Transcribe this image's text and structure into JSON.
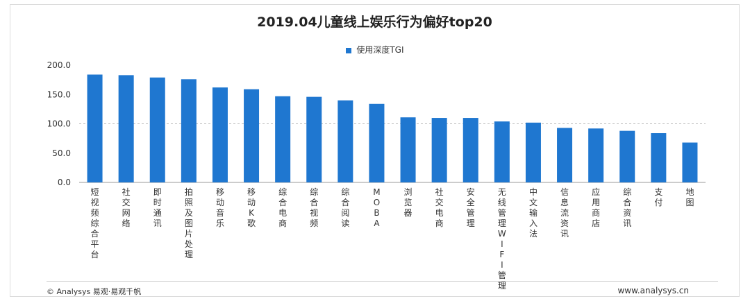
{
  "title": "2019.04儿童线上娱乐行为偏好top20",
  "footer": {
    "left": "© Analysys 易观·易观千帆",
    "right": "www.analysys.cn"
  },
  "colors": {
    "bar": "#1f77d0",
    "grid": "#b8b8b8",
    "axis": "#999999",
    "text": "#333333"
  },
  "chart_data": {
    "type": "bar",
    "categories": [
      "短视频综合平台",
      "社交网络",
      "即时通讯",
      "拍照及图片处理",
      "移动音乐",
      "移动K歌",
      "综合电商",
      "综合视频",
      "综合阅读",
      "MOBA",
      "浏览器",
      "社交电商",
      "安全管理",
      "无线管理WIFI管理",
      "中文输入法",
      "信息流资讯",
      "应用商店",
      "综合资讯",
      "支付",
      "地图"
    ],
    "series": [
      {
        "name": "使用深度TGI",
        "values": [
          184,
          183,
          179,
          176,
          162,
          159,
          147,
          146,
          140,
          134,
          111,
          110,
          110,
          104,
          102,
          93,
          92,
          88,
          84,
          68
        ]
      }
    ],
    "yticks": [
      "200.0",
      "150.0",
      "100.0",
      "50.0",
      "0.0"
    ],
    "ylim": [
      0,
      200
    ],
    "grid": "dashed line at 100",
    "legend": "top-center"
  }
}
